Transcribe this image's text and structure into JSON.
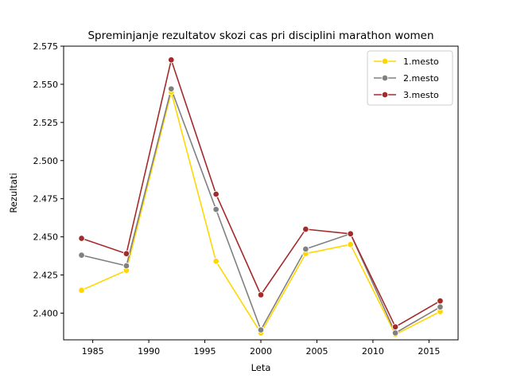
{
  "chart_data": {
    "type": "line",
    "title": "Spreminjanje rezultatov skozi cas pri disciplini marathon women",
    "xlabel": "Leta",
    "ylabel": "Rezultati",
    "xlim": [
      1982.4,
      2017.6
    ],
    "ylim": [
      2.3825,
      2.575
    ],
    "xticks": [
      1985,
      1990,
      1995,
      2000,
      2005,
      2010,
      2015
    ],
    "yticks": [
      2.4,
      2.425,
      2.45,
      2.475,
      2.5,
      2.525,
      2.55,
      2.575
    ],
    "x": [
      1984,
      1988,
      1992,
      1996,
      2000,
      2004,
      2008,
      2012,
      2016
    ],
    "legend_position": "top-right",
    "grid": false,
    "series": [
      {
        "name": "1.mesto",
        "color": "#FFD700",
        "values": [
          2.415,
          2.428,
          2.545,
          2.434,
          2.387,
          2.439,
          2.445,
          2.386,
          2.401
        ]
      },
      {
        "name": "2.mesto",
        "color": "#808080",
        "values": [
          2.438,
          2.431,
          2.547,
          2.468,
          2.389,
          2.442,
          2.452,
          2.387,
          2.404
        ]
      },
      {
        "name": "3.mesto",
        "color": "#A52A2A",
        "values": [
          2.449,
          2.439,
          2.566,
          2.478,
          2.412,
          2.455,
          2.452,
          2.391,
          2.408
        ]
      }
    ]
  }
}
